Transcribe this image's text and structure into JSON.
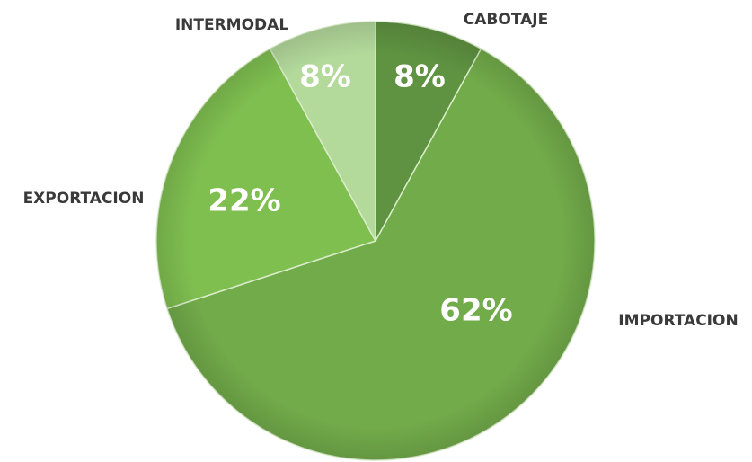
{
  "chart_data": {
    "type": "pie",
    "categories": [
      "CABOTAJE",
      "IMPORTACION",
      "EXPORTACION",
      "INTERMODAL"
    ],
    "values": [
      8,
      62,
      22,
      8
    ],
    "value_labels": [
      "8%",
      "62%",
      "22%",
      "8%"
    ],
    "colors": [
      "#5f9341",
      "#72ab4a",
      "#7fbf50",
      "#b3d99b"
    ]
  }
}
